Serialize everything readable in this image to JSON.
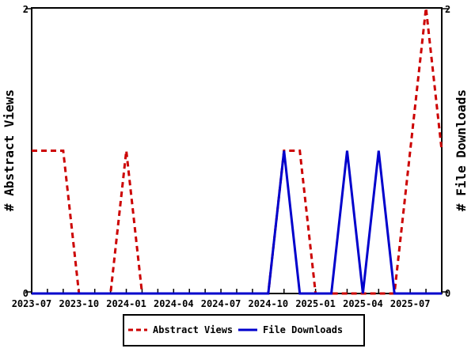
{
  "chart_data": {
    "type": "line",
    "title": "",
    "x": [
      "2023-07",
      "2023-08",
      "2023-09",
      "2023-10",
      "2023-11",
      "2023-12",
      "2024-01",
      "2024-02",
      "2024-03",
      "2024-04",
      "2024-05",
      "2024-06",
      "2024-07",
      "2024-08",
      "2024-09",
      "2024-10",
      "2024-11",
      "2024-12",
      "2025-01",
      "2025-02",
      "2025-03",
      "2025-04",
      "2025-05",
      "2025-06",
      "2025-07",
      "2025-08",
      "2025-09"
    ],
    "x_tick_label_every": 3,
    "x_tick_labels_shown": [
      "2023-07",
      "2023-10",
      "2024-01",
      "2024-04",
      "2024-07",
      "2024-10",
      "2025-01",
      "2025-04",
      "2025-07"
    ],
    "series": [
      {
        "name": "Abstract Views",
        "color": "#cc0000",
        "style": "dashed",
        "values": [
          1,
          1,
          1,
          0,
          0,
          0,
          1,
          0,
          0,
          0,
          0,
          0,
          0,
          0,
          0,
          0,
          1,
          1,
          0,
          0,
          0,
          0,
          0,
          0,
          1,
          2,
          1
        ]
      },
      {
        "name": "File Downloads",
        "color": "#0000cc",
        "style": "solid",
        "values": [
          0,
          0,
          0,
          0,
          0,
          0,
          0,
          0,
          0,
          0,
          0,
          0,
          0,
          0,
          0,
          0,
          1,
          0,
          0,
          0,
          1,
          0,
          1,
          0,
          0,
          0,
          0
        ]
      }
    ],
    "ylabel_left": "# Abstract Views",
    "ylabel_right": "# File Downloads",
    "ylim": [
      0,
      2
    ],
    "y_tick_labels": [
      "0",
      "2"
    ],
    "grid": false,
    "legend_position": "bottom-center",
    "frame_color": "#000000",
    "background_color": "#ffffff"
  }
}
